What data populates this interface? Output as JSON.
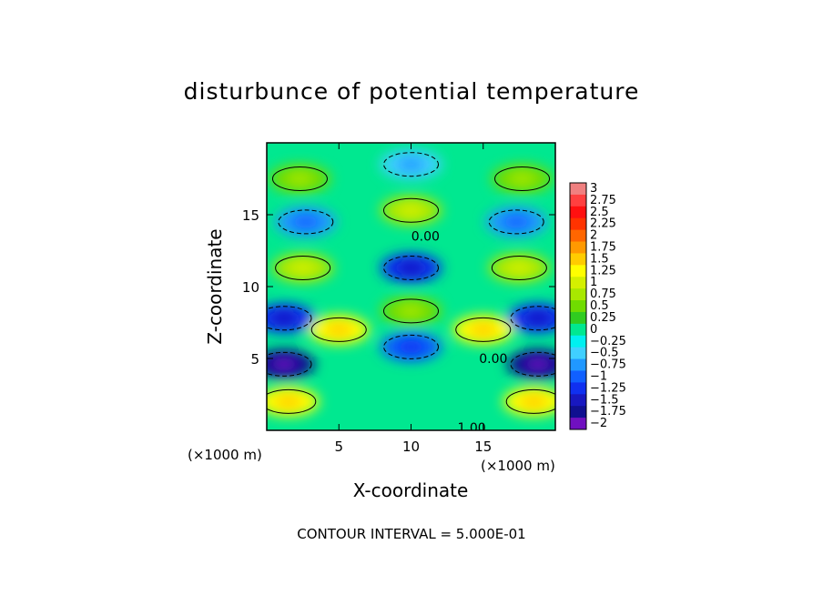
{
  "chart_data": {
    "type": "heatmap",
    "title": "disturbunce of potential temperature",
    "xlabel": "X-coordinate",
    "ylabel": "Z-coordinate",
    "x_unit": "(×1000 m)",
    "y_unit": "(×1000 m)",
    "xlim": [
      0,
      20
    ],
    "ylim": [
      0,
      20
    ],
    "xticks": [
      5,
      10,
      15
    ],
    "yticks": [
      5,
      10,
      15
    ],
    "colorbar": {
      "levels": [
        "3",
        "2.75",
        "2.5",
        "2.25",
        "2",
        "1.75",
        "1.5",
        "1.25",
        "1",
        "0.75",
        "0.5",
        "0.25",
        "0",
        "−0.25",
        "−0.5",
        "−0.75",
        "−1",
        "−1.25",
        "−1.5",
        "−1.75",
        "−2"
      ],
      "colors": [
        "#f08080",
        "#ff4040",
        "#ff1010",
        "#ff3300",
        "#ff6600",
        "#ff9900",
        "#ffcc00",
        "#ffff00",
        "#d4f000",
        "#a8e800",
        "#70dc00",
        "#30cc20",
        "#00e890",
        "#00f0f0",
        "#40d0ff",
        "#2098ff",
        "#1060ff",
        "#1030f0",
        "#1818c0",
        "#101090",
        "#7010c0"
      ]
    },
    "contour_labels": [
      {
        "text": "0.00",
        "x": 11.0,
        "z": 13.5
      },
      {
        "text": "0.00",
        "x": 15.7,
        "z": 5.0
      },
      {
        "text": "1.00",
        "x": 14.2,
        "z": 0.2
      }
    ],
    "features": [
      {
        "name": "upper positive lobe",
        "x": 10.0,
        "z": 15.3,
        "value": 0.75
      },
      {
        "name": "upper-left positive lobe",
        "x": 2.3,
        "z": 17.5,
        "value": 0.5
      },
      {
        "name": "upper-right positive lobe",
        "x": 17.7,
        "z": 17.5,
        "value": 0.5
      },
      {
        "name": "top negative lobe",
        "x": 10.0,
        "z": 18.5,
        "value": -0.5
      },
      {
        "name": "left negative lobe",
        "x": 2.7,
        "z": 14.5,
        "value": -0.75
      },
      {
        "name": "right negative lobe",
        "x": 17.3,
        "z": 14.5,
        "value": -0.75
      },
      {
        "name": "center negative lobe",
        "x": 10.0,
        "z": 11.3,
        "value": -1.25
      },
      {
        "name": "mid-left positive lobe",
        "x": 2.5,
        "z": 11.3,
        "value": 0.75
      },
      {
        "name": "mid-right positive lobe",
        "x": 17.5,
        "z": 11.3,
        "value": 0.75
      },
      {
        "name": "center positive lobe",
        "x": 10.0,
        "z": 8.3,
        "value": 0.5
      },
      {
        "name": "left positive core",
        "x": 5.0,
        "z": 7.0,
        "value": 1.25
      },
      {
        "name": "right positive core",
        "x": 15.0,
        "z": 7.0,
        "value": 1.25
      },
      {
        "name": "left negative band",
        "x": 1.2,
        "z": 7.8,
        "value": -1.25
      },
      {
        "name": "right negative band",
        "x": 18.8,
        "z": 7.8,
        "value": -1.25
      },
      {
        "name": "central negative cluster",
        "x": 10.0,
        "z": 5.8,
        "value": -1.0
      },
      {
        "name": "left low negative",
        "x": 1.2,
        "z": 4.6,
        "value": -1.75
      },
      {
        "name": "right low negative",
        "x": 18.8,
        "z": 4.6,
        "value": -1.75
      },
      {
        "name": "bottom-left positive",
        "x": 1.5,
        "z": 2.0,
        "value": 1.25
      },
      {
        "name": "bottom-right positive",
        "x": 18.5,
        "z": 2.0,
        "value": 1.25
      }
    ]
  },
  "contour_interval_text": "CONTOUR INTERVAL = 5.000E-01"
}
